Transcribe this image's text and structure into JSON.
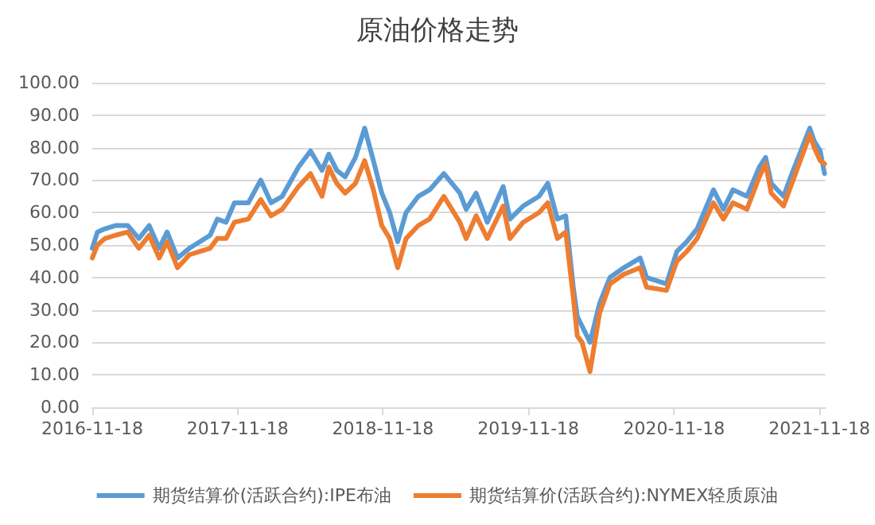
{
  "chart_data": {
    "type": "line",
    "title": "原油价格走势",
    "x": [
      "2016-11-18",
      "2016-12-01",
      "2016-12-20",
      "2017-01-15",
      "2017-02-15",
      "2017-03-15",
      "2017-04-10",
      "2017-05-05",
      "2017-05-25",
      "2017-06-20",
      "2017-07-20",
      "2017-08-15",
      "2017-09-10",
      "2017-09-28",
      "2017-10-20",
      "2017-11-10",
      "2017-12-15",
      "2018-01-15",
      "2018-02-10",
      "2018-03-10",
      "2018-04-20",
      "2018-05-20",
      "2018-06-18",
      "2018-07-05",
      "2018-07-25",
      "2018-08-15",
      "2018-09-10",
      "2018-10-03",
      "2018-10-25",
      "2018-11-15",
      "2018-12-05",
      "2018-12-25",
      "2019-01-15",
      "2019-02-15",
      "2019-03-15",
      "2019-04-20",
      "2019-05-30",
      "2019-06-15",
      "2019-07-10",
      "2019-08-07",
      "2019-09-16",
      "2019-10-03",
      "2019-11-05",
      "2019-12-15",
      "2020-01-06",
      "2020-01-30",
      "2020-02-20",
      "2020-03-10",
      "2020-03-20",
      "2020-04-01",
      "2020-04-21",
      "2020-05-15",
      "2020-06-10",
      "2020-07-15",
      "2020-08-25",
      "2020-09-10",
      "2020-10-30",
      "2020-11-25",
      "2020-12-20",
      "2021-01-15",
      "2021-02-25",
      "2021-03-22",
      "2021-04-15",
      "2021-05-20",
      "2021-06-20",
      "2021-07-06",
      "2021-07-20",
      "2021-08-20",
      "2021-09-10",
      "2021-10-25",
      "2021-11-05",
      "2021-11-20",
      "2021-12-01"
    ],
    "series": [
      {
        "name": "期货结算价(活跃合约):IPE布油",
        "color": "#5b9bd5",
        "values": [
          49,
          54,
          55,
          56,
          56,
          52,
          56,
          49,
          54,
          46,
          49,
          51,
          53,
          58,
          57,
          63,
          63,
          70,
          63,
          65,
          74,
          79,
          73,
          78,
          73,
          71,
          77,
          86,
          76,
          66,
          60,
          51,
          60,
          65,
          67,
          72,
          66,
          61,
          66,
          57,
          68,
          58,
          62,
          65,
          69,
          58,
          59,
          37,
          28,
          25,
          20,
          32,
          40,
          43,
          46,
          40,
          38,
          48,
          51,
          55,
          67,
          61,
          67,
          65,
          74,
          77,
          69,
          65,
          72,
          86,
          82,
          79,
          72
        ]
      },
      {
        "name": "期货结算价(活跃合约):NYMEX轻质原油",
        "color": "#ed7d31",
        "values": [
          46,
          50,
          52,
          53,
          54,
          49,
          53,
          46,
          51,
          43,
          47,
          48,
          49,
          52,
          52,
          57,
          58,
          64,
          59,
          61,
          68,
          72,
          65,
          74,
          69,
          66,
          69,
          76,
          67,
          56,
          52,
          43,
          52,
          56,
          58,
          65,
          57,
          52,
          59,
          52,
          62,
          52,
          57,
          60,
          63,
          52,
          54,
          34,
          22,
          20,
          11,
          29,
          38,
          41,
          43,
          37,
          36,
          45,
          48,
          52,
          63,
          58,
          63,
          61,
          71,
          75,
          66,
          62,
          69,
          84,
          80,
          76,
          75
        ]
      }
    ],
    "xlim": [
      "2016-11-18",
      "2021-12-03"
    ],
    "xticks": [
      "2016-11-18",
      "2017-11-18",
      "2018-11-18",
      "2019-11-18",
      "2020-11-18",
      "2021-11-18"
    ],
    "ylim": [
      0,
      100
    ],
    "yticks": [
      {
        "value": 0,
        "label": "0.00"
      },
      {
        "value": 10,
        "label": "10.00"
      },
      {
        "value": 20,
        "label": "20.00"
      },
      {
        "value": 30,
        "label": "30.00"
      },
      {
        "value": 40,
        "label": "40.00"
      },
      {
        "value": 50,
        "label": "50.00"
      },
      {
        "value": 60,
        "label": "60.00"
      },
      {
        "value": 70,
        "label": "70.00"
      },
      {
        "value": 80,
        "label": "80.00"
      },
      {
        "value": 90,
        "label": "90.00"
      },
      {
        "value": 100,
        "label": "100.00"
      }
    ],
    "grid": "y",
    "legend": "bottom",
    "marker": "none",
    "line_style": "solid"
  }
}
